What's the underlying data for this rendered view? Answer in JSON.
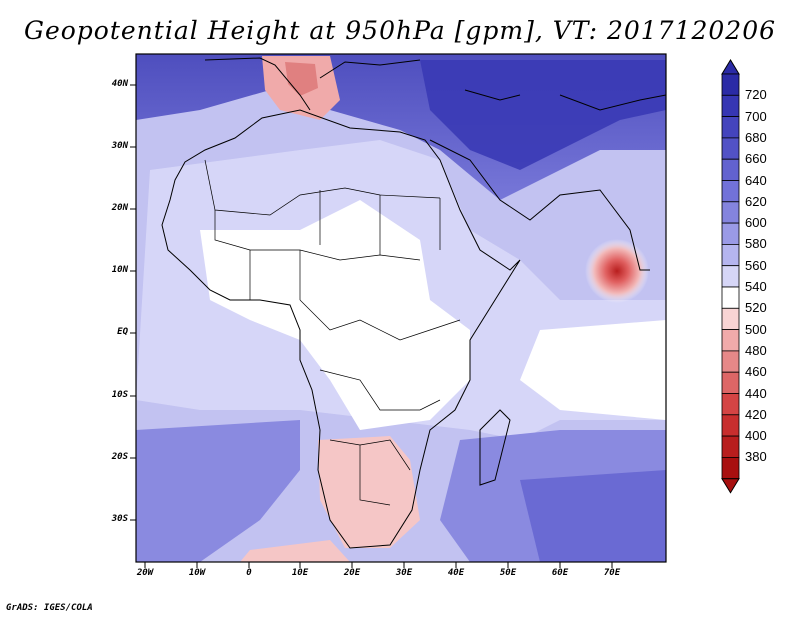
{
  "title": "Geopotential Height at 950hPa [gpm], VT: 2017120206",
  "credit": "GrADS: IGES/COLA",
  "lat_labels": [
    "40N",
    "30N",
    "20N",
    "10N",
    "EQ",
    "10S",
    "20S",
    "30S"
  ],
  "lon_labels": [
    "20W",
    "10W",
    "0",
    "10E",
    "20E",
    "30E",
    "40E",
    "50E",
    "60E",
    "70E"
  ],
  "colorbar": {
    "labels": [
      "720",
      "700",
      "680",
      "660",
      "640",
      "620",
      "600",
      "580",
      "560",
      "540",
      "520",
      "500",
      "480",
      "460",
      "440",
      "420",
      "400",
      "380"
    ],
    "colors": [
      "#2b2ba6",
      "#3636b3",
      "#4444bd",
      "#5252c6",
      "#6262cf",
      "#7272d8",
      "#8484de",
      "#9a9ae6",
      "#b5b5ef",
      "#d6d6f7",
      "#ffffff",
      "#f8d4d4",
      "#f0aaaa",
      "#e68888",
      "#dd6666",
      "#d44444",
      "#c82e2e",
      "#b81e1e",
      "#a81010"
    ],
    "arrow_top": "#2b2ba6",
    "arrow_bottom": "#a81010"
  },
  "map": {
    "ocean_base": "#c2c2f1",
    "land_base": "#ffffff",
    "high_north": "#4a4ac2",
    "low_color": "#f2b8b8",
    "cyclone_color": "#c82e2e"
  }
}
